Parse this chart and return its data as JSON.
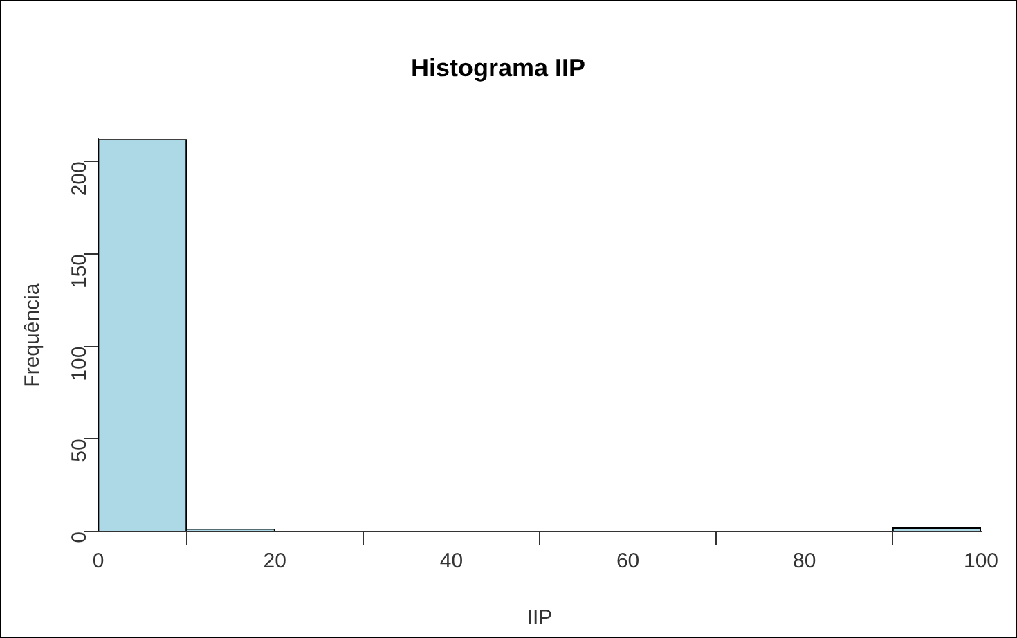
{
  "chart_data": {
    "type": "histogram",
    "title": "Histograma IIP",
    "xlabel": "IIP",
    "ylabel": "Frequência",
    "bins": [
      0,
      10,
      20,
      30,
      40,
      50,
      60,
      70,
      80,
      90,
      100
    ],
    "values": [
      212,
      1,
      0,
      0,
      0,
      0,
      0,
      0,
      0,
      2
    ],
    "color": "#add8e6",
    "xlim": [
      0,
      100
    ],
    "xticks": [
      0,
      20,
      40,
      60,
      80,
      100
    ],
    "ylim": [
      0,
      212
    ],
    "yticks": [
      0,
      50,
      100,
      150,
      200
    ],
    "grid": false,
    "legend": false
  }
}
